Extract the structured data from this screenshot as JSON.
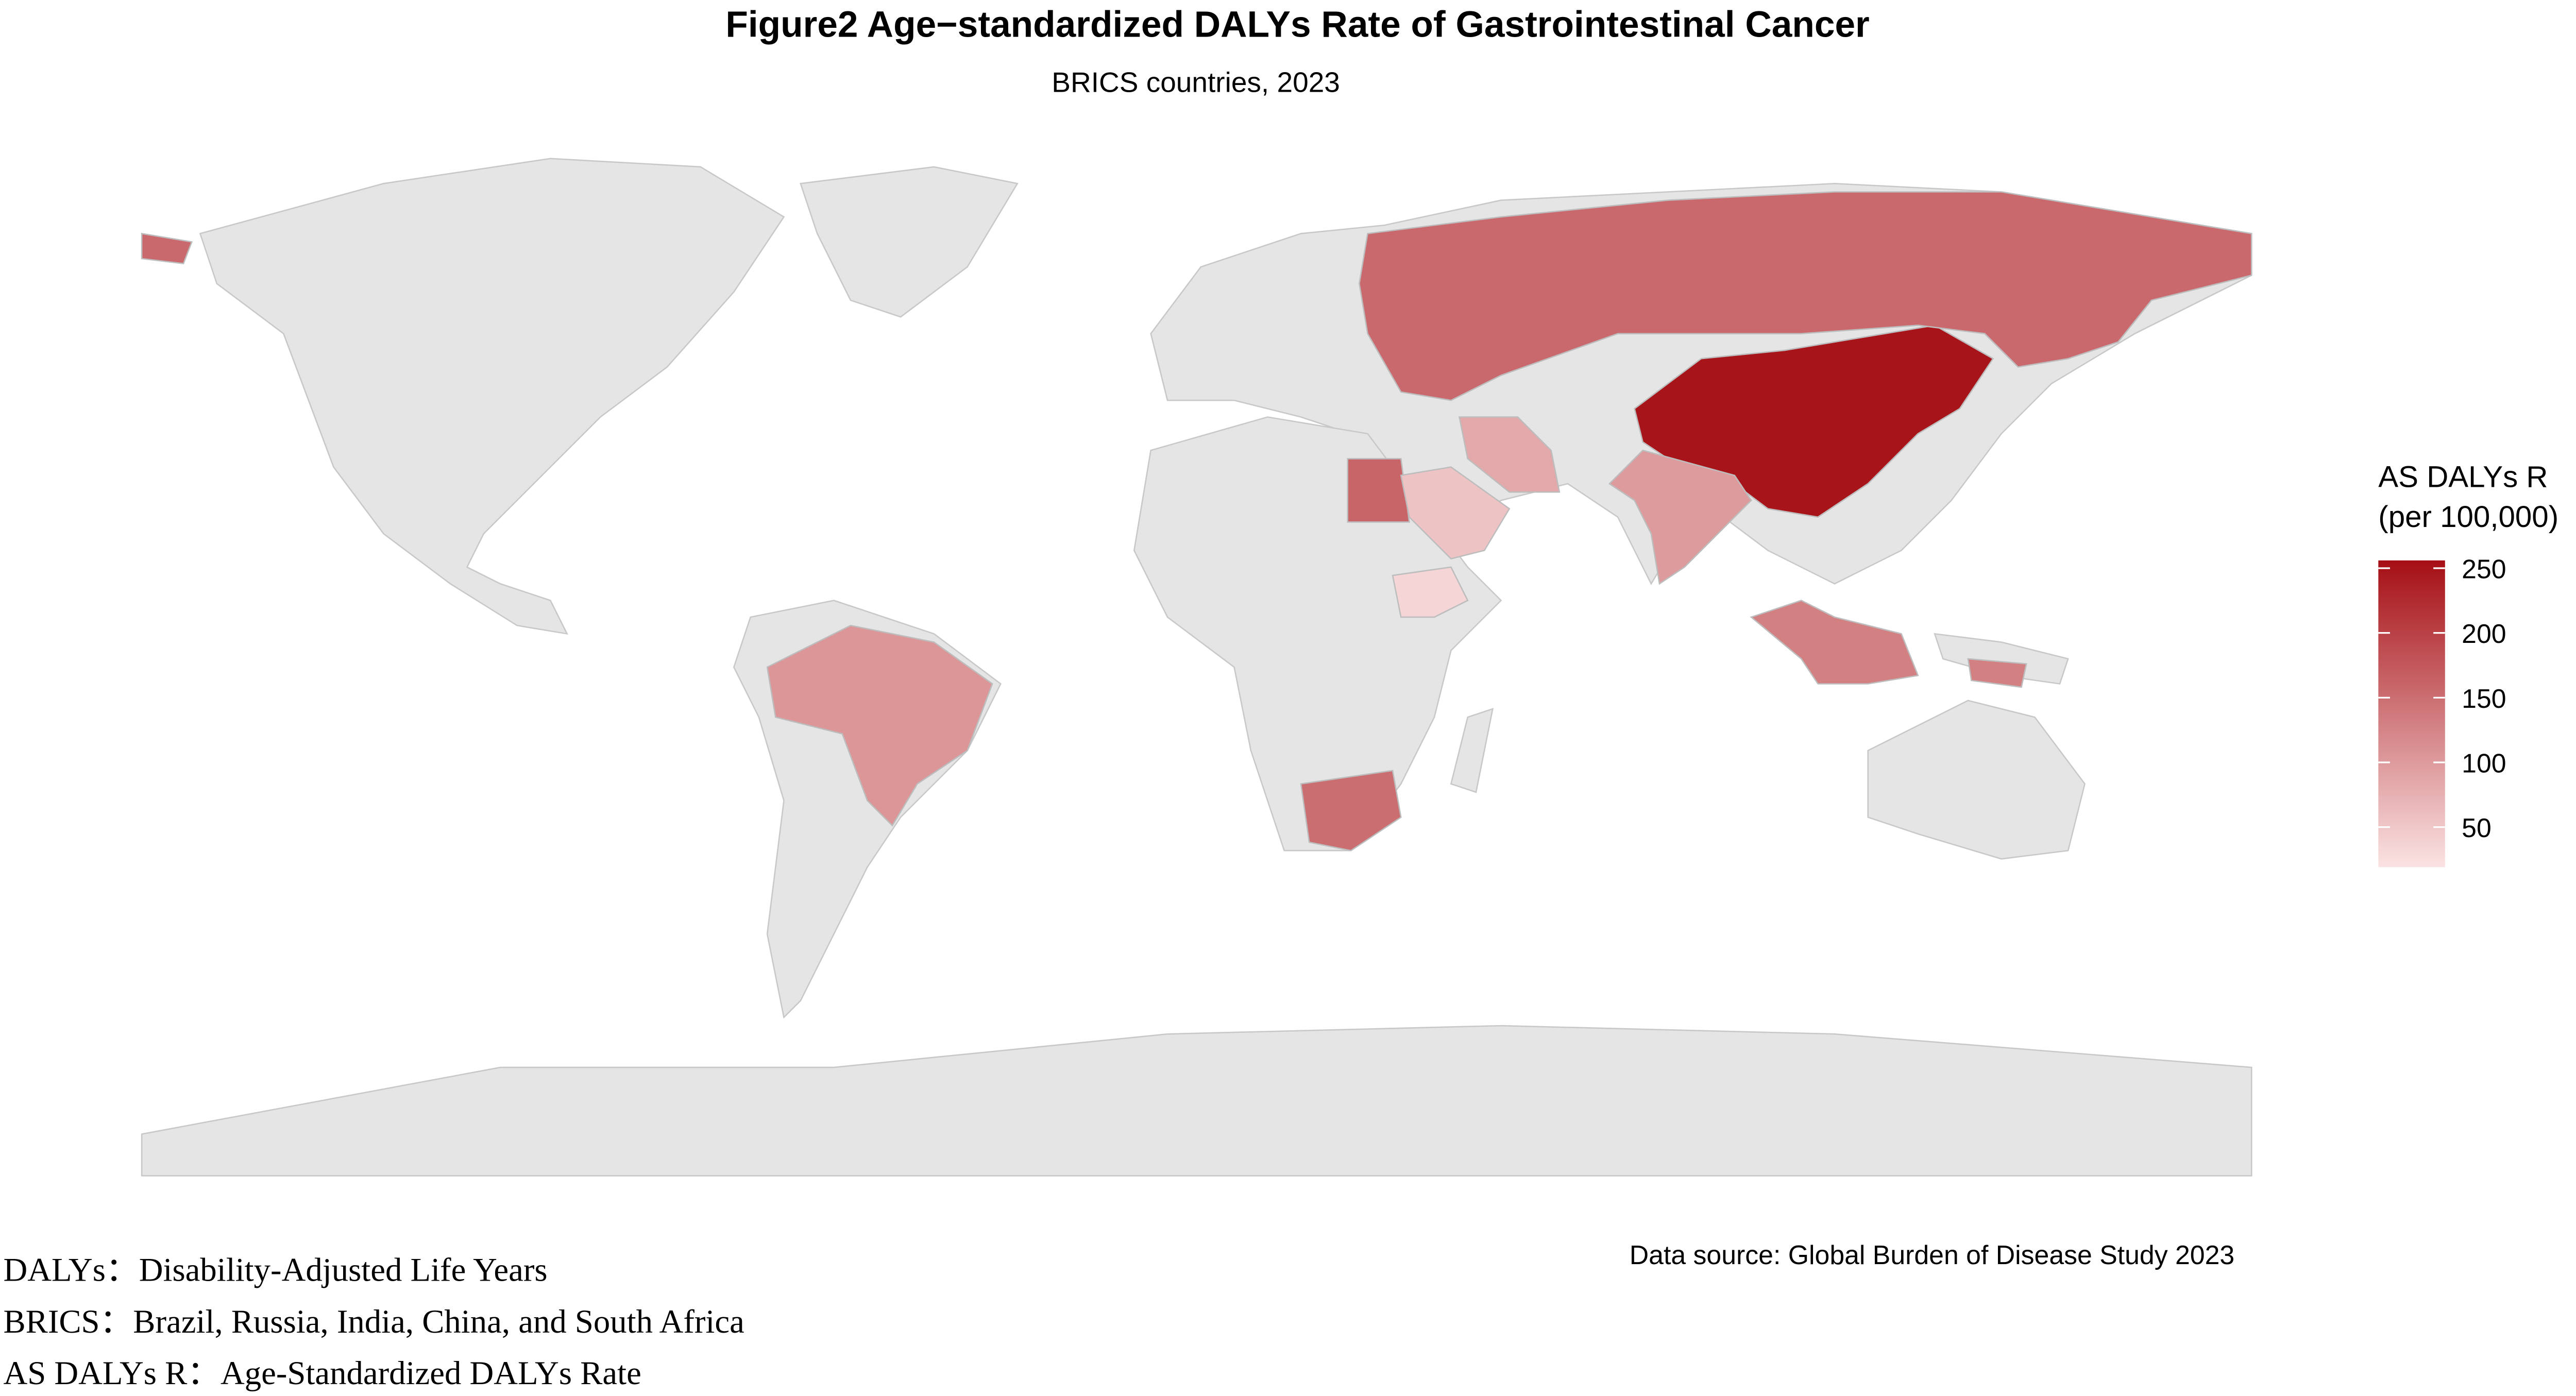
{
  "chart_data": {
    "type": "choropleth",
    "title": "Figure2  Age−standardized DALYs Rate of Gastrointestinal Cancer",
    "subtitle": "BRICS countries, 2023",
    "legend_title": [
      "AS DALYs R",
      "(per 100,000)"
    ],
    "categories": [
      null,
      null,
      null,
      null,
      null,
      null,
      null,
      null,
      null,
      null
    ],
    "values": [
      250,
      155,
      160,
      150,
      130,
      105,
      100,
      85,
      55,
      35
    ],
    "colorlim": [
      19,
      256
    ],
    "colorticks": [
      50,
      100,
      150,
      200,
      250
    ],
    "low_color": "#fbe3e3",
    "high_color": "#a50f15",
    "no_data_color": "#e5e5e5",
    "source": "Data source: Global Burden of Disease Study 2023",
    "notes": [
      "DALYs：Disability-Adjusted Life Years",
      "BRICS：Brazil, Russia, India, China, and South Africa",
      "AS DALYs R：Age-Standardized DALYs Rate"
    ]
  }
}
